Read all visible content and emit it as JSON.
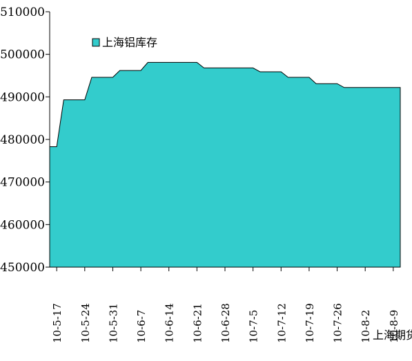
{
  "chart_data": {
    "type": "area",
    "series": [
      {
        "name": "上海铝库存",
        "color": "#33CCCC",
        "values": [
          478300,
          478300,
          489300,
          489300,
          489300,
          489300,
          494600,
          494600,
          494600,
          494600,
          496200,
          496200,
          496200,
          496200,
          498100,
          498100,
          498100,
          498100,
          498100,
          498100,
          498100,
          498100,
          496800,
          496800,
          496800,
          496800,
          496800,
          496800,
          496800,
          496800,
          495900,
          495900,
          495900,
          495900,
          494600,
          494600,
          494600,
          494600,
          493100,
          493100,
          493100,
          493100,
          492200,
          492200,
          492200,
          492200,
          492200,
          492200,
          492200,
          492200,
          492200
        ]
      }
    ],
    "x_tick_labels": [
      "10-5-17",
      "10-5-24",
      "10-5-31",
      "10-6-7",
      "10-6-14",
      "10-6-21",
      "10-6-28",
      "10-7-5",
      "10-7-12",
      "10-7-19",
      "10-7-26",
      "10-8-2",
      "10-8-9"
    ],
    "ylim": [
      450000,
      510000
    ],
    "yticks": [
      450000,
      460000,
      470000,
      480000,
      490000,
      500000,
      510000
    ],
    "ytick_labels": [
      "450000",
      "460000",
      "470000",
      "480000",
      "490000",
      "500000",
      "510000"
    ],
    "legend_placement": "top-left",
    "grid": false,
    "annotation": "上海期货"
  }
}
